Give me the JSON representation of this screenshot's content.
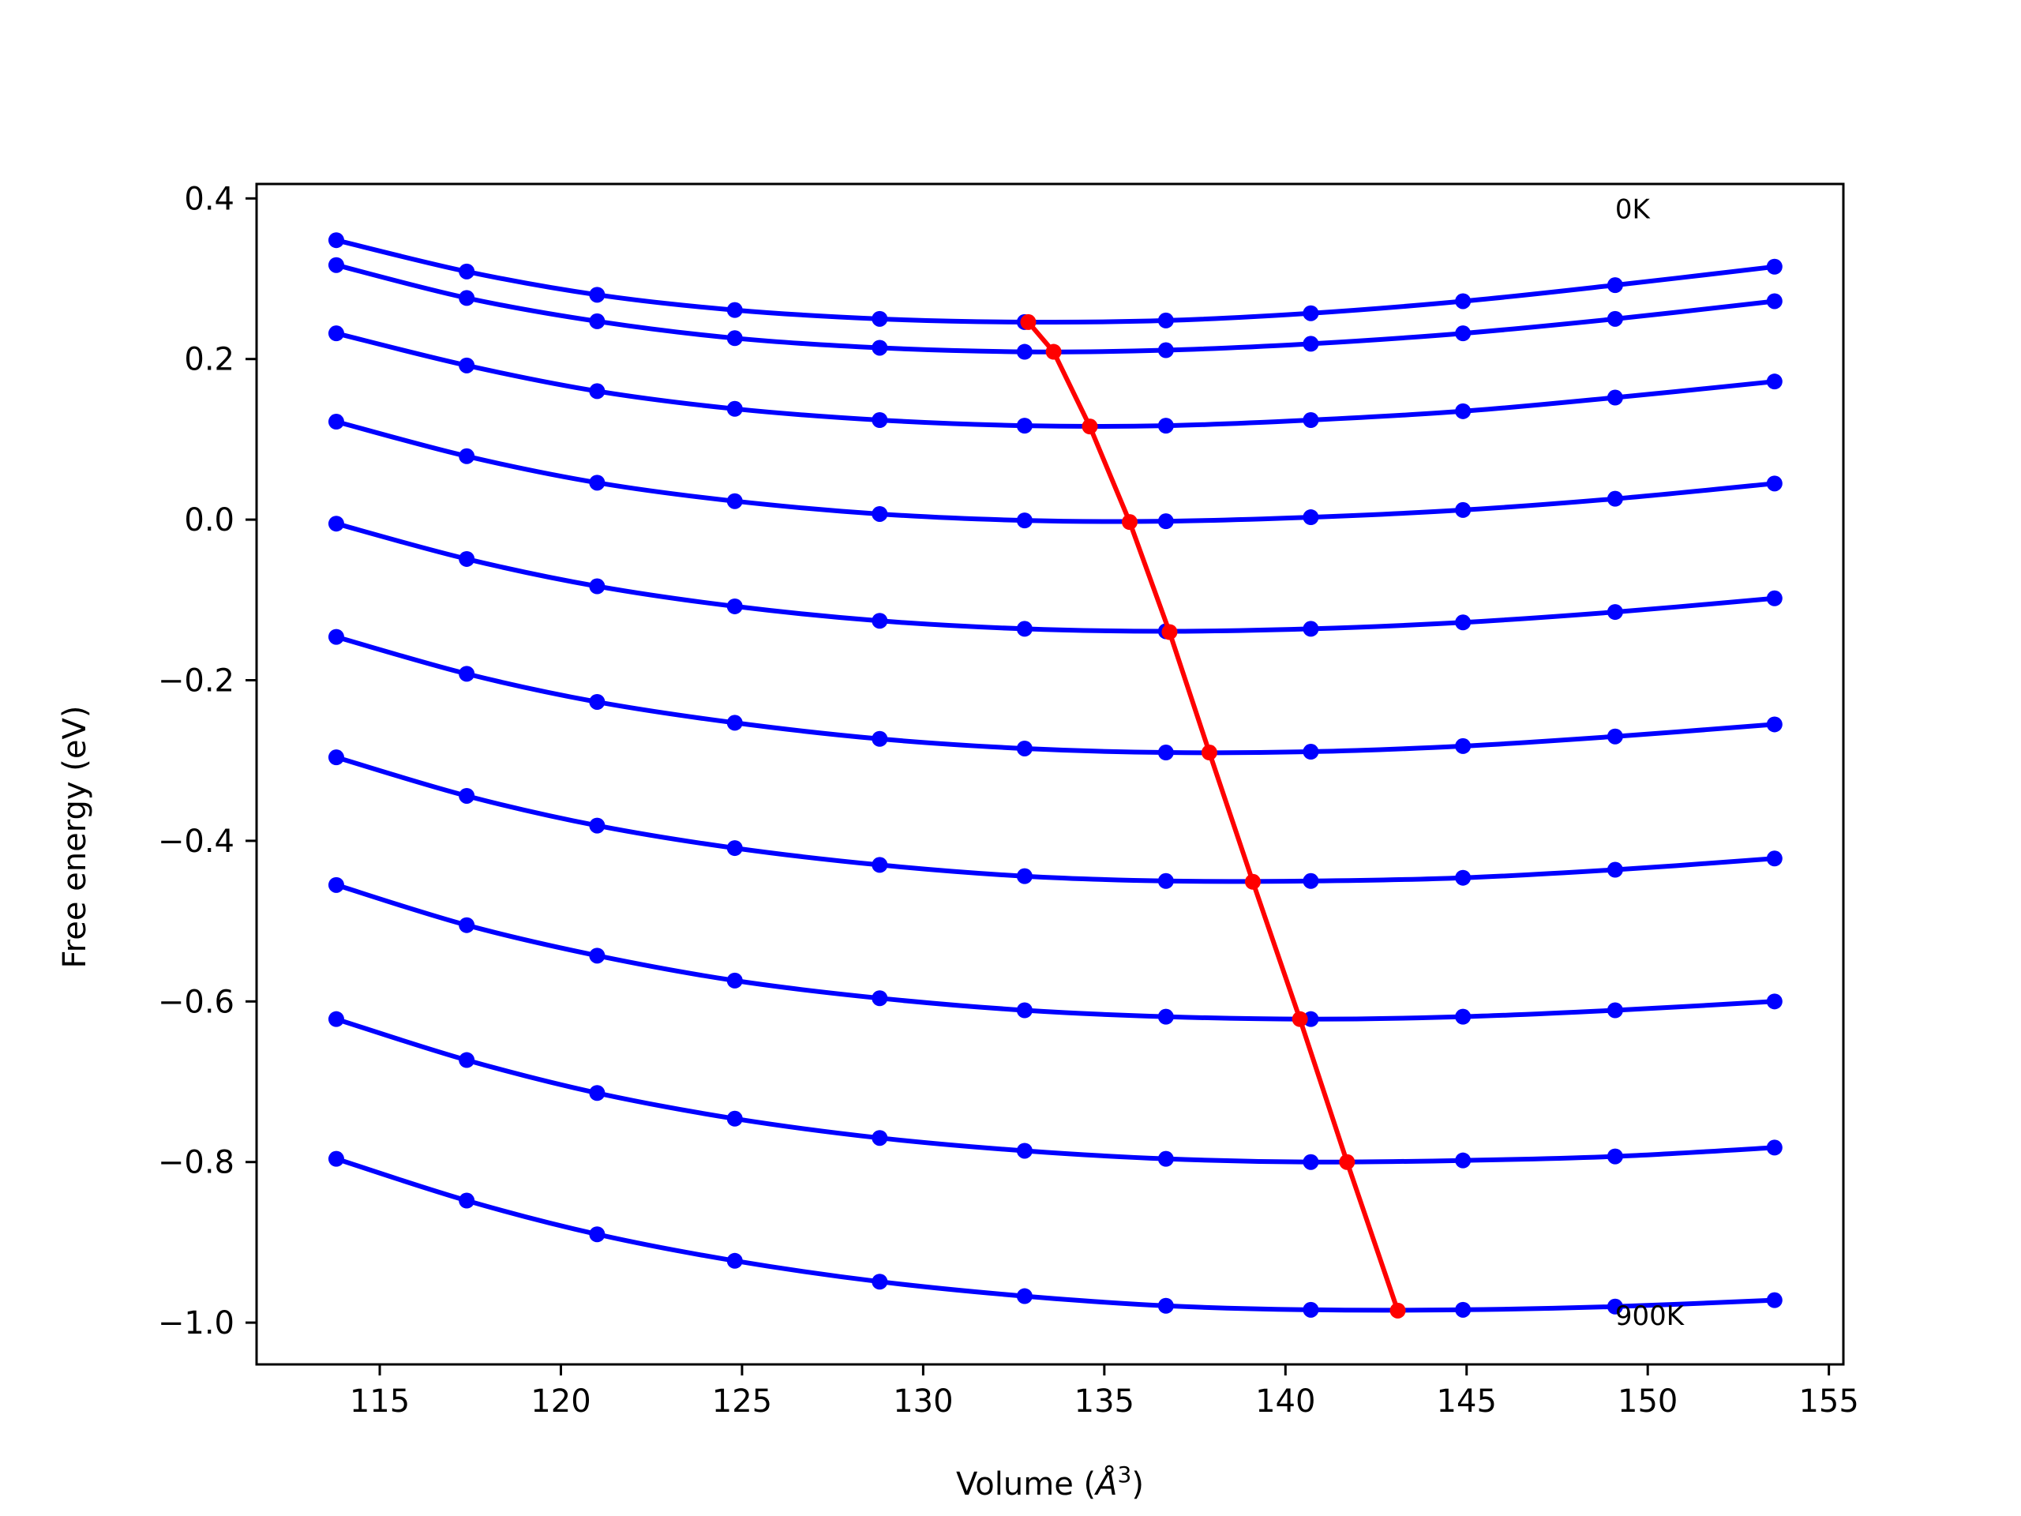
{
  "chart_data": {
    "type": "line",
    "title": "",
    "xlabel": "Volume ",
    "xlabel_unit": "Å",
    "xlabel_sup": "3",
    "ylabel": "Free energy (eV)",
    "xlim": [
      111.6,
      155.4
    ],
    "ylim": [
      -1.052,
      0.418
    ],
    "xticks": [
      115,
      120,
      125,
      130,
      135,
      140,
      145,
      150,
      155
    ],
    "xtick_labels": [
      "115",
      "120",
      "125",
      "130",
      "135",
      "140",
      "145",
      "150",
      "155"
    ],
    "yticks": [
      0.4,
      0.2,
      0.0,
      -0.2,
      -0.4,
      -0.6,
      -0.8,
      -1.0
    ],
    "ytick_labels": [
      "0.4",
      "0.2",
      "0.0",
      "−0.2",
      "−0.4",
      "−0.6",
      "−0.8",
      "−1.0"
    ],
    "grid": false,
    "annotations": [
      {
        "text": "0K",
        "x": 149.1,
        "y": 0.375
      },
      {
        "text": "900K",
        "x": 149.1,
        "y": -1.003
      }
    ],
    "volumes": [
      113.8,
      117.4,
      121.0,
      124.8,
      128.8,
      132.8,
      136.7,
      140.7,
      144.9,
      149.1,
      153.5
    ],
    "series": [
      {
        "color": "#0000ff",
        "values": [
          0.348,
          0.309,
          0.28,
          0.261,
          0.25,
          0.246,
          0.248,
          0.257,
          0.272,
          0.292,
          0.315
        ]
      },
      {
        "color": "#0000ff",
        "values": [
          0.317,
          0.276,
          0.247,
          0.226,
          0.214,
          0.209,
          0.211,
          0.219,
          0.232,
          0.25,
          0.272
        ]
      },
      {
        "color": "#0000ff",
        "values": [
          0.232,
          0.192,
          0.16,
          0.138,
          0.124,
          0.117,
          0.117,
          0.124,
          0.135,
          0.152,
          0.172
        ]
      },
      {
        "color": "#0000ff",
        "values": [
          0.122,
          0.079,
          0.046,
          0.023,
          0.007,
          -0.001,
          -0.002,
          0.003,
          0.012,
          0.026,
          0.045
        ]
      },
      {
        "color": "#0000ff",
        "values": [
          -0.005,
          -0.049,
          -0.083,
          -0.108,
          -0.126,
          -0.136,
          -0.139,
          -0.136,
          -0.128,
          -0.115,
          -0.098
        ]
      },
      {
        "color": "#0000ff",
        "values": [
          -0.146,
          -0.192,
          -0.227,
          -0.253,
          -0.273,
          -0.285,
          -0.29,
          -0.289,
          -0.282,
          -0.27,
          -0.255
        ]
      },
      {
        "color": "#0000ff",
        "values": [
          -0.296,
          -0.344,
          -0.381,
          -0.409,
          -0.43,
          -0.444,
          -0.45,
          -0.45,
          -0.446,
          -0.436,
          -0.422
        ]
      },
      {
        "color": "#0000ff",
        "values": [
          -0.455,
          -0.505,
          -0.543,
          -0.574,
          -0.596,
          -0.611,
          -0.619,
          -0.622,
          -0.619,
          -0.611,
          -0.6
        ]
      },
      {
        "color": "#0000ff",
        "values": [
          -0.622,
          -0.673,
          -0.714,
          -0.746,
          -0.77,
          -0.786,
          -0.796,
          -0.8,
          -0.798,
          -0.793,
          -0.782
        ]
      },
      {
        "color": "#0000ff",
        "values": [
          -0.796,
          -0.848,
          -0.89,
          -0.923,
          -0.949,
          -0.967,
          -0.979,
          -0.984,
          -0.984,
          -0.98,
          -0.972
        ]
      }
    ],
    "minima_line": {
      "color": "#ff0000",
      "x": [
        132.9,
        133.6,
        134.6,
        135.7,
        136.8,
        137.9,
        139.1,
        140.4,
        141.7,
        143.1
      ],
      "y": [
        0.246,
        0.209,
        0.116,
        -0.003,
        -0.14,
        -0.29,
        -0.451,
        -0.622,
        -0.8,
        -0.985
      ]
    }
  }
}
